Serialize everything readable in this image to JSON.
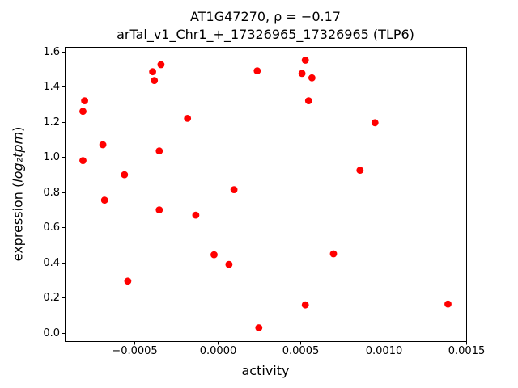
{
  "figure": {
    "title_line1": "AT1G47270, ρ = −0.17",
    "title_line2": "arTal_v1_Chr1_+_17326965_17326965 (TLP6)"
  },
  "chart_data": {
    "type": "scatter",
    "title": "AT1G47270, ρ = −0.17",
    "subtitle": "arTal_v1_Chr1_+_17326965_17326965 (TLP6)",
    "xlabel": "activity",
    "ylabel": "expression (log₂tpm)",
    "ylabel_parts": {
      "prefix": "expression (",
      "math": "log₂tpm",
      "suffix": ")"
    },
    "marker_color": "#ff0000",
    "grid": false,
    "legend": "none",
    "xlim": [
      -0.00092,
      0.0015
    ],
    "ylim": [
      -0.046,
      1.626
    ],
    "x_ticks": [
      {
        "value": -0.0005,
        "label": "−0.0005"
      },
      {
        "value": 0.0,
        "label": "0.0000"
      },
      {
        "value": 0.0005,
        "label": "0.0005"
      },
      {
        "value": 0.001,
        "label": "0.0010"
      },
      {
        "value": 0.0015,
        "label": "0.0015"
      }
    ],
    "y_ticks": [
      {
        "value": 0.0,
        "label": "0.0"
      },
      {
        "value": 0.2,
        "label": "0.2"
      },
      {
        "value": 0.4,
        "label": "0.4"
      },
      {
        "value": 0.6,
        "label": "0.6"
      },
      {
        "value": 0.8,
        "label": "0.8"
      },
      {
        "value": 1.0,
        "label": "1.0"
      },
      {
        "value": 1.2,
        "label": "1.2"
      },
      {
        "value": 1.4,
        "label": "1.4"
      },
      {
        "value": 1.6,
        "label": "1.6"
      }
    ],
    "points": [
      [
        -0.0008,
        1.32
      ],
      [
        -0.00081,
        1.26
      ],
      [
        -0.00081,
        0.98
      ],
      [
        -0.00069,
        1.07
      ],
      [
        -0.00068,
        0.755
      ],
      [
        -0.00056,
        0.9
      ],
      [
        -0.00054,
        0.295
      ],
      [
        -0.00039,
        1.485
      ],
      [
        -0.00038,
        1.435
      ],
      [
        -0.00034,
        1.525
      ],
      [
        -0.00035,
        1.035
      ],
      [
        -0.00035,
        0.7
      ],
      [
        -0.00018,
        1.22
      ],
      [
        -0.00013,
        0.67
      ],
      [
        -2e-05,
        0.445
      ],
      [
        7e-05,
        0.39
      ],
      [
        0.0001,
        0.815
      ],
      [
        0.00024,
        1.49
      ],
      [
        0.00025,
        0.03
      ],
      [
        0.00051,
        1.475
      ],
      [
        0.00053,
        1.55
      ],
      [
        0.00057,
        1.45
      ],
      [
        0.00055,
        1.32
      ],
      [
        0.00053,
        0.16
      ],
      [
        0.0007,
        0.45
      ],
      [
        0.00086,
        0.925
      ],
      [
        0.00095,
        1.195
      ],
      [
        0.00139,
        0.165
      ]
    ]
  }
}
